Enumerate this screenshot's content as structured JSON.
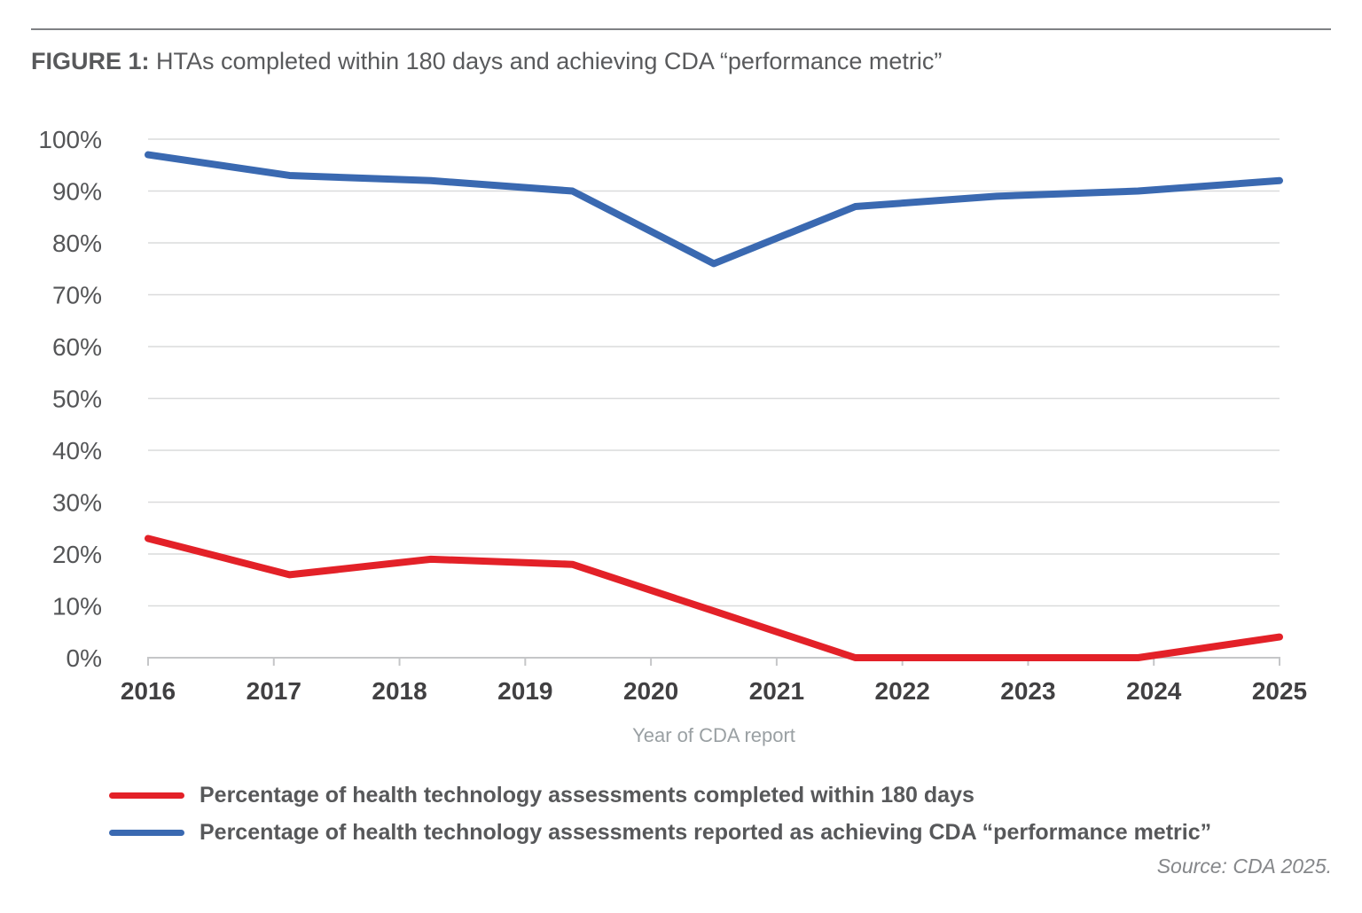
{
  "figure": {
    "title_prefix": "FIGURE 1:",
    "title_text": " HTAs completed within 180 days and achieving CDA “performance metric”",
    "source": "Source: CDA 2025."
  },
  "chart_data": {
    "type": "line",
    "title": "FIGURE 1: HTAs completed within 180 days and achieving CDA “performance metric”",
    "xlabel": "Year of CDA report",
    "ylabel": "",
    "ylim": [
      0,
      100
    ],
    "y_ticks": [
      "0%",
      "10%",
      "20%",
      "30%",
      "40%",
      "50%",
      "60%",
      "70%",
      "80%",
      "90%",
      "100%"
    ],
    "x_ticks": [
      "2016",
      "2017",
      "2018",
      "2019",
      "2020",
      "2021",
      "2022",
      "2023",
      "2024",
      "2025"
    ],
    "x_range": [
      2016,
      2025
    ],
    "x": [
      2016,
      2017.125,
      2018.25,
      2019.375,
      2020.5,
      2021.625,
      2022.75,
      2023.875,
      2025
    ],
    "series": [
      {
        "name": "Percentage of health technology assessments completed within 180 days",
        "color": "#e32128",
        "values": [
          23,
          16,
          19,
          18,
          9,
          0,
          0,
          0,
          4
        ]
      },
      {
        "name": "Percentage of health technology assessments reported as achieving CDA “performance metric”",
        "color": "#3a69b1",
        "values": [
          97,
          93,
          92,
          90,
          76,
          87,
          89,
          90,
          92
        ]
      }
    ],
    "grid": "horizontal",
    "legend_position": "bottom-left"
  },
  "colors": {
    "red_series": "#e32128",
    "blue_series": "#3a69b1",
    "gridline": "#dadbdc",
    "axis": "#c5c6c8",
    "title_text": "#58595b",
    "x_tick_text": "#414042",
    "y_tick_text": "#545557",
    "axis_title_text": "#9aa0a3",
    "source_text": "#85878a"
  }
}
